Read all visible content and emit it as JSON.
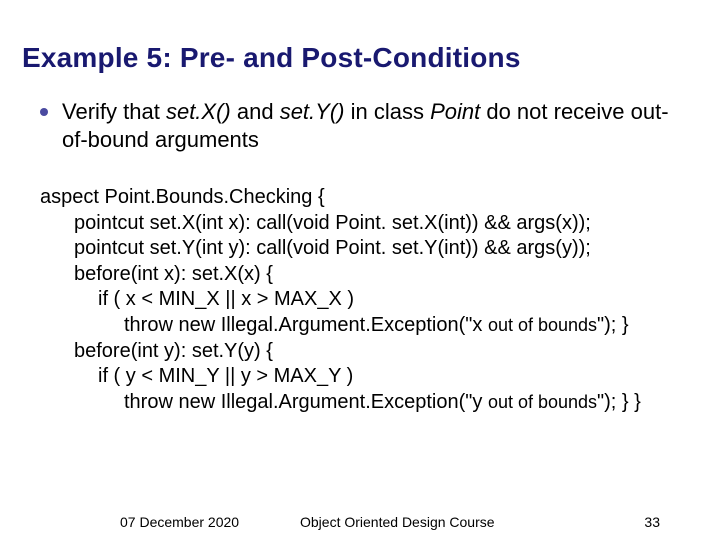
{
  "title": "Example 5: Pre- and Post-Conditions",
  "title_color": "#191970",
  "title_fontsize": 28,
  "bullet": {
    "dot_color": "#4a4aa0",
    "pre": "Verify that ",
    "setX": "set.X()",
    "mid1": " and ",
    "setY": "set.Y()",
    "mid2": " in class ",
    "point": "Point",
    "post": " do not receive out-of-bound arguments",
    "fontsize": 22
  },
  "code": {
    "fontsize": 20,
    "l1": "aspect Point.Bounds.Checking {",
    "l2": "pointcut set.X(int x): call(void Point. set.X(int)) && args(x));",
    "l3": "pointcut set.Y(int y): call(void Point. set.Y(int)) && args(y));",
    "l4": "before(int x): set.X(x) {",
    "l5": "if ( x < MIN_X || x > MAX_X )",
    "l6a": "throw new Illegal.Argument.Exception(\"x ",
    "l6b": "out of bounds",
    "l6c": "\"); }",
    "l7": "before(int y): set.Y(y) {",
    "l8": "if ( y < MIN_Y || y > MAX_Y )",
    "l9a": "throw new Illegal.Argument.Exception(\"y ",
    "l9b": "out of bounds",
    "l9c": "\"); } }"
  },
  "footer": {
    "date": "07 December 2020",
    "course": "Object Oriented Design Course",
    "page": "33",
    "fontsize": 14
  },
  "background_color": "#ffffff"
}
